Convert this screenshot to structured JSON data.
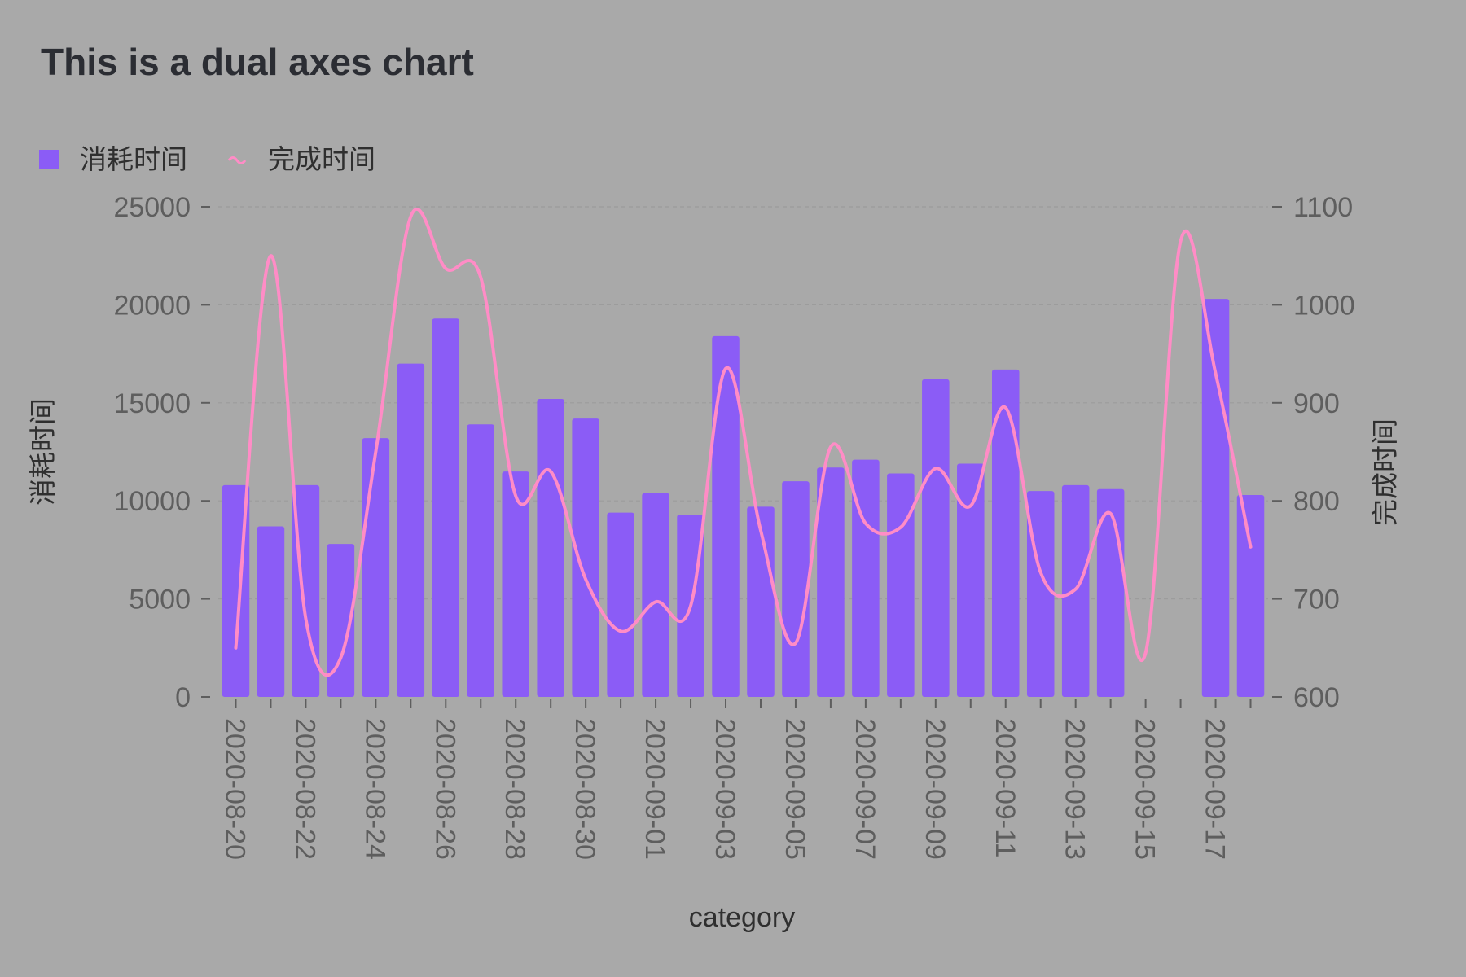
{
  "chart_data": {
    "type": "bar",
    "title": "This is a dual axes chart",
    "xlabel": "category",
    "ylabel_left": "消耗时间",
    "ylabel_right": "完成时间",
    "ylim_left": [
      0,
      25000
    ],
    "ylim_right": [
      600,
      1100
    ],
    "yticks_left": [
      "0",
      "5000",
      "10000",
      "15000",
      "20000",
      "25000"
    ],
    "yticks_right": [
      "600",
      "700",
      "800",
      "900",
      "1000",
      "1100"
    ],
    "grid": true,
    "legend_position": "top-left",
    "colors": {
      "bar": "#8b5cf6",
      "line": "#ff8cc6",
      "background": "#a9a9a9"
    },
    "categories": [
      "2020-08-20",
      "2020-08-21",
      "2020-08-22",
      "2020-08-23",
      "2020-08-24",
      "2020-08-25",
      "2020-08-26",
      "2020-08-27",
      "2020-08-28",
      "2020-08-29",
      "2020-08-30",
      "2020-08-31",
      "2020-09-01",
      "2020-09-02",
      "2020-09-03",
      "2020-09-04",
      "2020-09-05",
      "2020-09-06",
      "2020-09-07",
      "2020-09-08",
      "2020-09-09",
      "2020-09-10",
      "2020-09-11",
      "2020-09-12",
      "2020-09-13",
      "2020-09-14",
      "2020-09-15",
      "2020-09-16",
      "2020-09-17",
      "2020-09-18"
    ],
    "x_tick_labels": [
      "2020-08-20",
      "2020-08-22",
      "2020-08-24",
      "2020-08-26",
      "2020-08-28",
      "2020-08-30",
      "2020-09-01",
      "2020-09-03",
      "2020-09-05",
      "2020-09-07",
      "2020-09-09",
      "2020-09-11",
      "2020-09-13",
      "2020-09-15",
      "2020-09-17"
    ],
    "series": [
      {
        "name": "消耗时间",
        "type": "bar",
        "axis": "left",
        "values": [
          10800,
          8700,
          10800,
          7800,
          13200,
          17000,
          19300,
          13900,
          11500,
          15200,
          14200,
          9400,
          10400,
          9300,
          18400,
          9700,
          11000,
          11700,
          12100,
          11400,
          16200,
          11900,
          16700,
          10500,
          10800,
          10600,
          null,
          null,
          20300,
          10300
        ]
      },
      {
        "name": "完成时间",
        "type": "line",
        "axis": "right",
        "values": [
          650,
          1050,
          680,
          640,
          850,
          1090,
          1037,
          1028,
          805,
          830,
          720,
          667,
          697,
          693,
          935,
          770,
          655,
          855,
          777,
          773,
          833,
          795,
          895,
          727,
          710,
          787,
          645,
          1065,
          930,
          753
        ]
      }
    ]
  }
}
